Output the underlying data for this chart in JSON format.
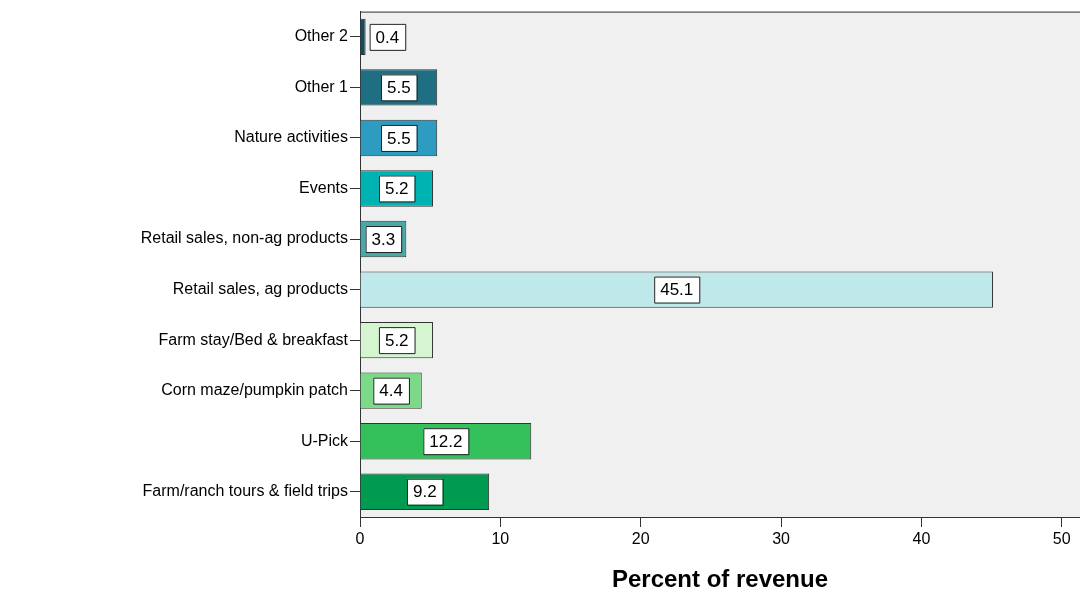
{
  "chart_data": {
    "type": "bar",
    "orientation": "horizontal",
    "xlabel": "Percent of revenue",
    "categories": [
      "Other 2",
      "Other 1",
      "Nature activities",
      "Events",
      "Retail sales, non-ag products",
      "Retail sales, ag products",
      "Farm stay/Bed & breakfast",
      "Corn maze/pumpkin patch",
      "U-Pick",
      "Farm/ranch tours & field trips"
    ],
    "values": [
      0.4,
      5.5,
      5.5,
      5.2,
      3.3,
      45.1,
      5.2,
      4.4,
      12.2,
      9.2
    ],
    "colors": [
      "#174a5c",
      "#1f6e82",
      "#2e9bc0",
      "#00b3b3",
      "#48a9a8",
      "#bfe8ea",
      "#d4f5d0",
      "#7dd98a",
      "#34c05a",
      "#009a50"
    ],
    "xlim": [
      0,
      51.3
    ],
    "xticks": [
      0,
      10,
      20,
      30,
      40,
      50
    ],
    "grid": false,
    "legend": false,
    "data_labels": true
  }
}
